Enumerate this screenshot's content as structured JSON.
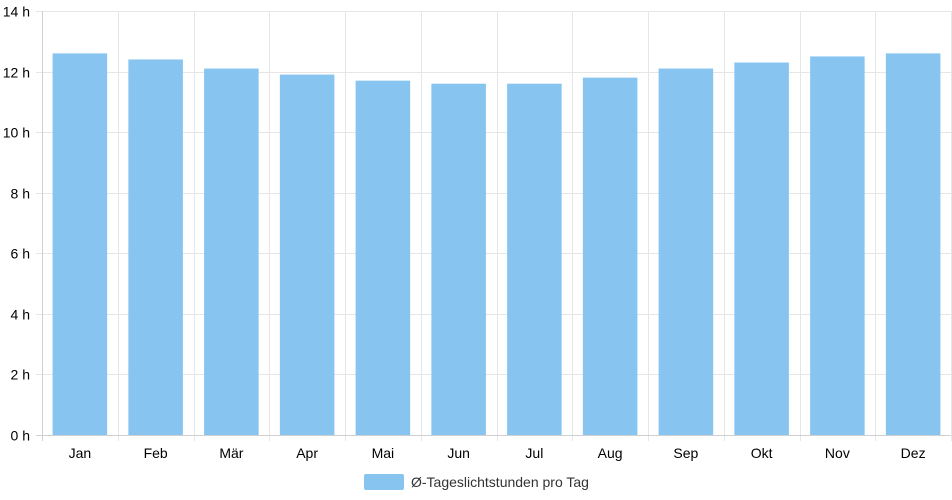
{
  "chart_data": {
    "type": "bar",
    "categories": [
      "Jan",
      "Feb",
      "Mär",
      "Apr",
      "Mai",
      "Jun",
      "Jul",
      "Aug",
      "Sep",
      "Okt",
      "Nov",
      "Dez"
    ],
    "series": [
      {
        "name": "Ø-Tageslichtstunden pro Tag",
        "values": [
          12.6,
          12.4,
          12.1,
          11.9,
          11.7,
          11.6,
          11.6,
          11.8,
          12.1,
          12.3,
          12.5,
          12.6
        ],
        "color": "#87c5f0"
      }
    ],
    "yticks": [
      "0 h",
      "2 h",
      "4 h",
      "6 h",
      "8 h",
      "10 h",
      "12 h",
      "14 h"
    ],
    "ylim": [
      0,
      14
    ],
    "grid": true,
    "legend_position": "bottom"
  }
}
